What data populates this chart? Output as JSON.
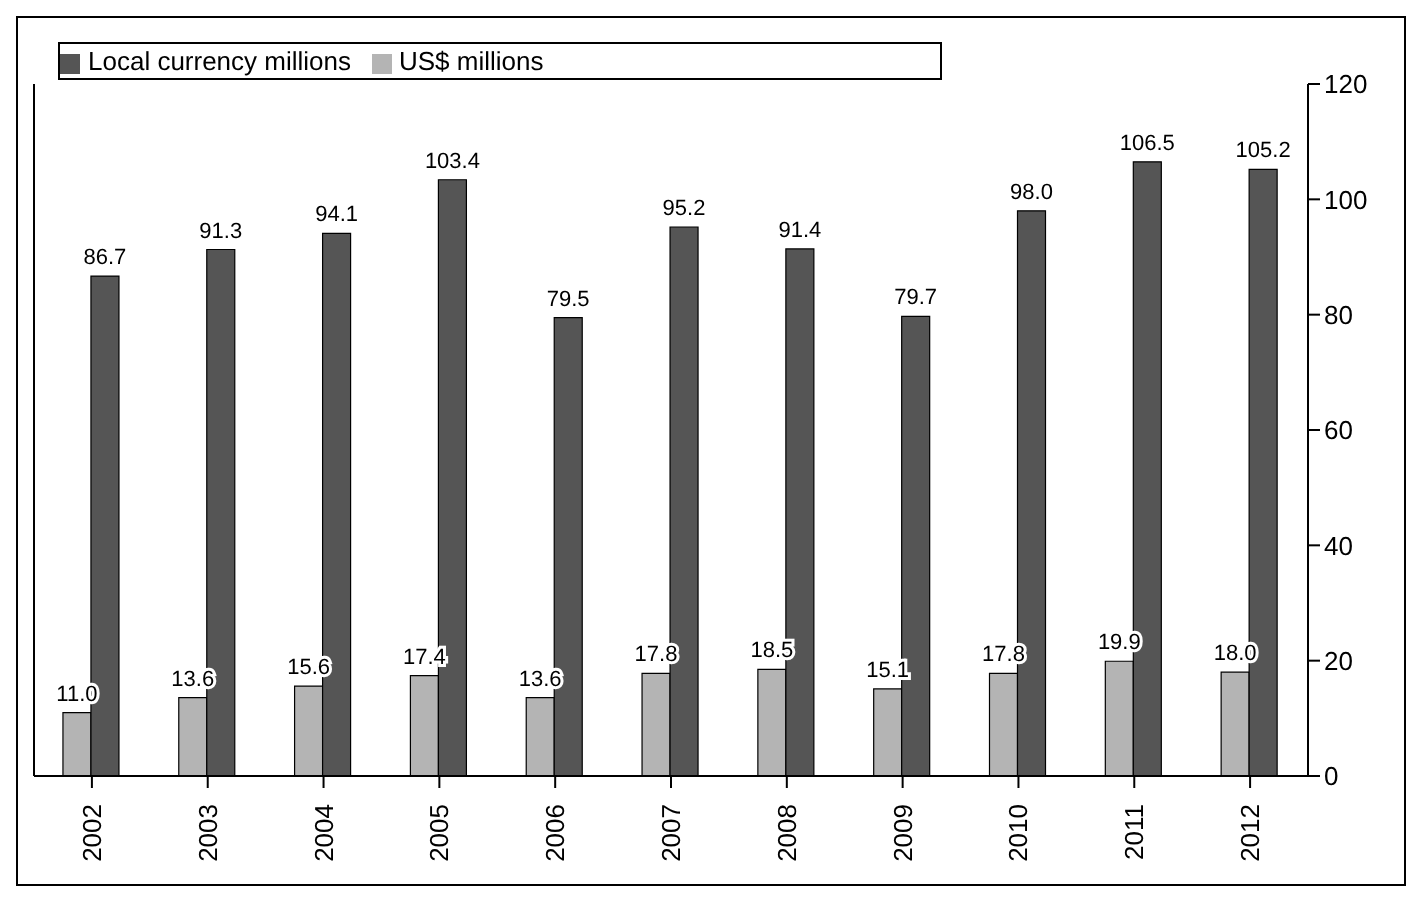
{
  "chart_data": {
    "type": "bar",
    "categories": [
      "2002",
      "2003",
      "2004",
      "2005",
      "2006",
      "2007",
      "2008",
      "2009",
      "2010",
      "2011",
      "2012"
    ],
    "series": [
      {
        "name": "US$ millions",
        "color": "#b4b4b4",
        "values": [
          11.0,
          13.6,
          15.6,
          17.4,
          13.6,
          17.8,
          18.5,
          15.1,
          17.8,
          19.9,
          18.0
        ],
        "value_labels": [
          "11.0",
          "13.6",
          "15.6",
          "17.4",
          "13.6",
          "17.8",
          "18.5",
          "15.1",
          "17.8",
          "19.9",
          "18.0"
        ]
      },
      {
        "name": "Local currency millions",
        "color": "#555555",
        "values": [
          86.7,
          91.3,
          94.1,
          103.4,
          79.5,
          95.2,
          91.4,
          79.7,
          98.0,
          106.5,
          105.2
        ],
        "value_labels": [
          "86.7",
          "91.3",
          "94.1",
          "103.4",
          "79.5",
          "95.2",
          "91.4",
          "79.7",
          "98.0",
          "106.5",
          "105.2"
        ]
      }
    ],
    "ylim": [
      0,
      120
    ],
    "yticks": [
      0,
      20,
      40,
      60,
      80,
      100,
      120
    ],
    "grid": false,
    "legend": "top left"
  }
}
